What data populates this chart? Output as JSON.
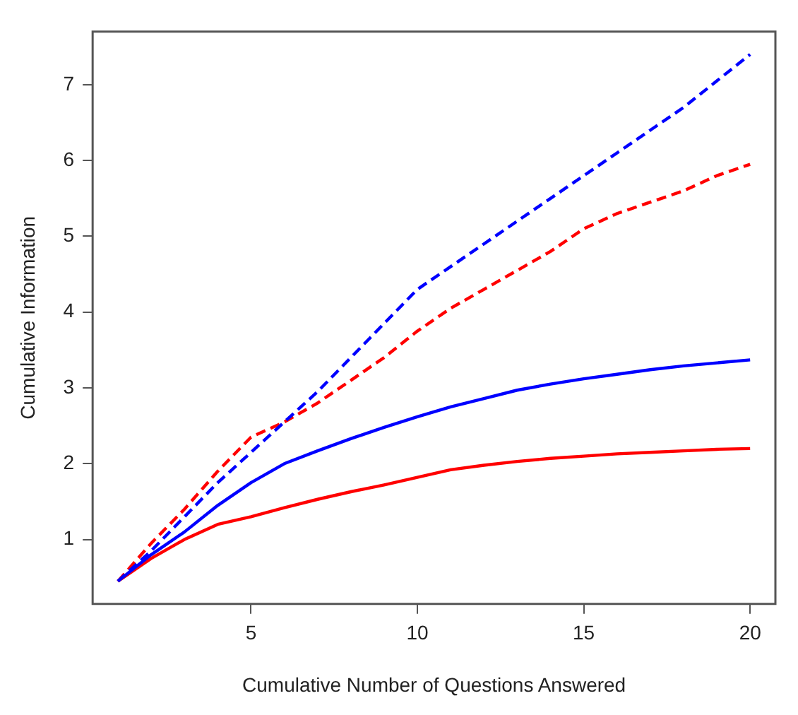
{
  "chart_data": {
    "type": "line",
    "xlabel": "Cumulative Number of Questions Answered",
    "ylabel": "Cumulative Information",
    "x": [
      1,
      2,
      3,
      4,
      5,
      6,
      7,
      8,
      9,
      10,
      11,
      12,
      13,
      14,
      15,
      16,
      17,
      18,
      19,
      20
    ],
    "xlim": [
      0.24,
      20.76
    ],
    "xticks": [
      5,
      10,
      15,
      20
    ],
    "ylim": [
      0.15,
      7.7
    ],
    "yticks": [
      1,
      2,
      3,
      4,
      5,
      6,
      7
    ],
    "grid": false,
    "legend": false,
    "marker": "none",
    "series": [
      {
        "color": "#0000ff",
        "line_style": "dashed",
        "values": [
          0.45,
          0.85,
          1.3,
          1.75,
          2.15,
          2.55,
          2.95,
          3.4,
          3.85,
          4.3,
          4.6,
          4.9,
          5.2,
          5.5,
          5.8,
          6.1,
          6.4,
          6.7,
          7.05,
          7.4
        ]
      },
      {
        "color": "#ff0000",
        "line_style": "dashed",
        "values": [
          0.45,
          0.95,
          1.4,
          1.9,
          2.35,
          2.55,
          2.8,
          3.1,
          3.4,
          3.75,
          4.05,
          4.3,
          4.55,
          4.8,
          5.1,
          5.3,
          5.45,
          5.6,
          5.8,
          5.95
        ]
      },
      {
        "color": "#0000ff",
        "line_style": "solid",
        "values": [
          0.45,
          0.8,
          1.1,
          1.45,
          1.75,
          2.0,
          2.17,
          2.33,
          2.48,
          2.62,
          2.75,
          2.86,
          2.97,
          3.05,
          3.12,
          3.18,
          3.24,
          3.29,
          3.33,
          3.37
        ]
      },
      {
        "color": "#ff0000",
        "line_style": "solid",
        "values": [
          0.45,
          0.75,
          1.0,
          1.2,
          1.3,
          1.42,
          1.53,
          1.63,
          1.72,
          1.82,
          1.92,
          1.98,
          2.03,
          2.07,
          2.1,
          2.13,
          2.15,
          2.17,
          2.19,
          2.2
        ]
      }
    ]
  }
}
